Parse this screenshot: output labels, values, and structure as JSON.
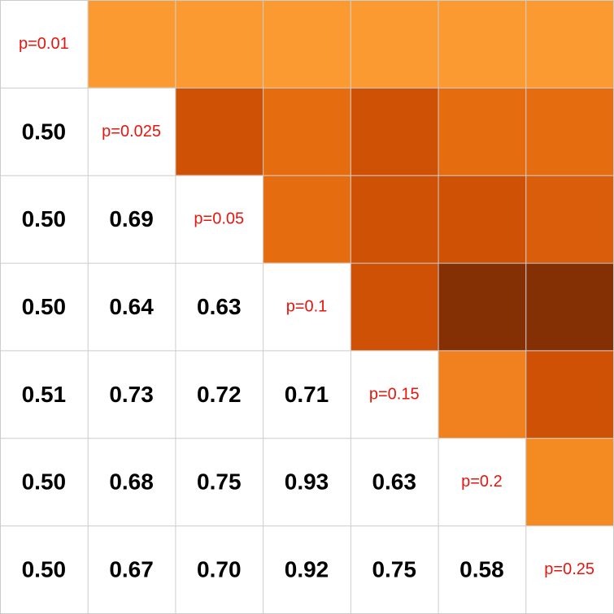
{
  "chart_data": {
    "type": "heatmap",
    "title": "",
    "xlabel": "",
    "ylabel": "",
    "grid": true,
    "legend": "none",
    "colors": {
      "diagonal_text": "#e8150f",
      "value_text": "#000000",
      "grid_line": "#cccccc",
      "background": "#ffffff"
    },
    "diagonal_labels": [
      "p=0.01",
      "p=0.025",
      "p=0.05",
      "p=0.1",
      "p=0.15",
      "p=0.2",
      "p=0.25"
    ],
    "lower_triangle": [
      [],
      [
        "0.50"
      ],
      [
        "0.50",
        "0.69"
      ],
      [
        "0.50",
        "0.64",
        "0.63"
      ],
      [
        "0.51",
        "0.73",
        "0.72",
        "0.71"
      ],
      [
        "0.50",
        "0.68",
        "0.75",
        "0.93",
        "0.63"
      ],
      [
        "0.50",
        "0.67",
        "0.70",
        "0.92",
        "0.75",
        "0.58"
      ]
    ],
    "upper_triangle_colors": [
      [
        "#fb9a30",
        "#fb9a30",
        "#fb9a30",
        "#fb9a30",
        "#fb9a30",
        "#fb9a30"
      ],
      [
        "#cf5105",
        "#e66c10",
        "#cf5105",
        "#e66c10",
        "#e66c10"
      ],
      [
        "#e66c10",
        "#cf5105",
        "#cf5105",
        "#d95d0a"
      ],
      [
        "#cf5105",
        "#843004",
        "#843004"
      ],
      [
        "#f1811f",
        "#cf5105"
      ],
      [
        "#f38a22"
      ]
    ]
  }
}
